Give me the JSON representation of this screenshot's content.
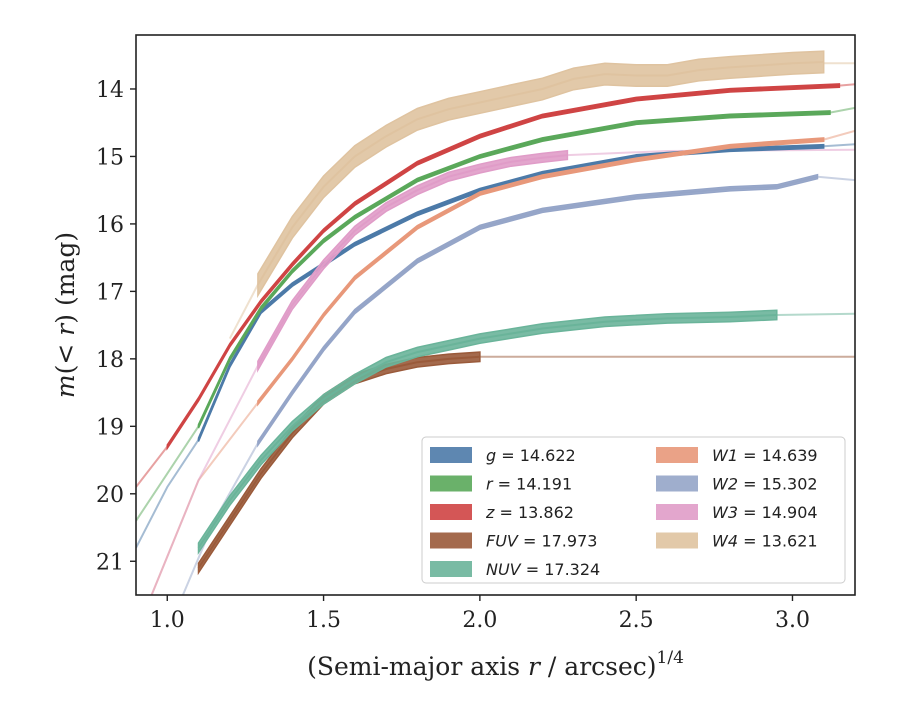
{
  "chart_data": {
    "type": "line",
    "xlabel": "(Semi-major axis r / arcsec)^1/4",
    "ylabel": "m(< r) (mag)",
    "xlim": [
      0.9,
      3.2
    ],
    "ylim": [
      21.5,
      13.2
    ],
    "y_inverted": true,
    "x_ticks": [
      1.0,
      1.5,
      2.0,
      2.5,
      3.0
    ],
    "x_tick_labels": [
      "1.0",
      "1.5",
      "2.0",
      "2.5",
      "3.0"
    ],
    "y_ticks": [
      14,
      15,
      16,
      17,
      18,
      19,
      20,
      21
    ],
    "y_tick_labels": [
      "14",
      "15",
      "16",
      "17",
      "18",
      "19",
      "20",
      "21"
    ],
    "grid": false,
    "legend_placement": "lower-right",
    "legend_columns": 2,
    "series": [
      {
        "name": "g = 14.622",
        "color": "#4c7aa8",
        "band_width": 0.05,
        "x": [
          1.1,
          1.2,
          1.3,
          1.4,
          1.5,
          1.6,
          1.8,
          2.0,
          2.2,
          2.5,
          2.8,
          3.1
        ],
        "y": [
          19.2,
          18.1,
          17.3,
          16.9,
          16.6,
          16.3,
          15.85,
          15.5,
          15.25,
          15.0,
          14.9,
          14.85
        ],
        "faint_x": [
          0.9,
          1.0,
          1.1
        ],
        "faint_y": [
          20.8,
          19.9,
          19.2
        ],
        "faint_ext_x": [
          3.1,
          3.2
        ],
        "faint_ext_y": [
          14.85,
          14.82
        ]
      },
      {
        "name": "r = 14.191",
        "color": "#5aa85a",
        "band_width": 0.05,
        "x": [
          1.1,
          1.2,
          1.3,
          1.4,
          1.5,
          1.6,
          1.8,
          2.0,
          2.2,
          2.5,
          2.8,
          3.12
        ],
        "y": [
          19.0,
          18.0,
          17.25,
          16.7,
          16.25,
          15.9,
          15.35,
          15.0,
          14.75,
          14.5,
          14.4,
          14.35
        ],
        "faint_x": [
          0.9,
          1.0,
          1.1
        ],
        "faint_y": [
          20.4,
          19.7,
          19.0
        ],
        "faint_ext_x": [
          3.12,
          3.2
        ],
        "faint_ext_y": [
          14.35,
          14.28
        ]
      },
      {
        "name": "z = 13.862",
        "color": "#cf4444",
        "band_width": 0.05,
        "x": [
          1.0,
          1.1,
          1.2,
          1.3,
          1.4,
          1.5,
          1.6,
          1.8,
          2.0,
          2.2,
          2.5,
          2.8,
          3.15
        ],
        "y": [
          19.3,
          18.6,
          17.8,
          17.15,
          16.6,
          16.1,
          15.7,
          15.1,
          14.7,
          14.4,
          14.15,
          14.02,
          13.95
        ],
        "faint_x": [
          0.9,
          1.0
        ],
        "faint_y": [
          19.9,
          19.3
        ],
        "faint_ext_x": [
          3.15,
          3.2
        ],
        "faint_ext_y": [
          13.95,
          13.93
        ]
      },
      {
        "name": "FUV = 17.973",
        "color": "#9a5a3a",
        "band_width": 0.14,
        "x": [
          1.1,
          1.2,
          1.3,
          1.4,
          1.5,
          1.6,
          1.7,
          1.8,
          1.9,
          2.0
        ],
        "y": [
          21.1,
          20.4,
          19.7,
          19.1,
          18.6,
          18.3,
          18.15,
          18.05,
          18.0,
          17.97
        ],
        "faint_x": [
          2.0,
          2.2,
          2.5,
          2.8,
          3.2
        ],
        "faint_y": [
          17.97,
          17.97,
          17.97,
          17.97,
          17.97
        ],
        "faint_ext_x": [],
        "faint_ext_y": []
      },
      {
        "name": "NUV = 17.324",
        "color": "#6ab49a",
        "band_width": 0.14,
        "x": [
          1.1,
          1.2,
          1.3,
          1.4,
          1.5,
          1.6,
          1.7,
          1.8,
          1.9,
          2.0,
          2.2,
          2.4,
          2.6,
          2.8,
          2.95
        ],
        "y": [
          20.8,
          20.1,
          19.5,
          19.0,
          18.6,
          18.3,
          18.05,
          17.9,
          17.8,
          17.7,
          17.55,
          17.45,
          17.4,
          17.38,
          17.35
        ],
        "faint_x": [
          2.95,
          3.2
        ],
        "faint_y": [
          17.35,
          17.33
        ],
        "faint_ext_x": [],
        "faint_ext_y": []
      },
      {
        "name": "W1 = 14.639",
        "color": "#e8987a",
        "band_width": 0.05,
        "x": [
          1.29,
          1.4,
          1.5,
          1.6,
          1.8,
          2.0,
          2.2,
          2.5,
          2.8,
          3.1
        ],
        "y": [
          18.65,
          18.0,
          17.35,
          16.8,
          16.05,
          15.55,
          15.3,
          15.05,
          14.85,
          14.75
        ],
        "faint_x": [
          0.95,
          1.1,
          1.29
        ],
        "faint_y": [
          21.5,
          19.8,
          18.65
        ],
        "faint_ext_x": [
          3.1,
          3.2
        ],
        "faint_ext_y": [
          14.75,
          14.62
        ]
      },
      {
        "name": "W2 = 15.302",
        "color": "#95a5c8",
        "band_width": 0.06,
        "x": [
          1.29,
          1.4,
          1.5,
          1.6,
          1.8,
          2.0,
          2.2,
          2.5,
          2.8,
          2.95,
          3.08
        ],
        "y": [
          19.25,
          18.5,
          17.85,
          17.3,
          16.55,
          16.05,
          15.8,
          15.6,
          15.48,
          15.45,
          15.3
        ],
        "faint_x": [
          1.05,
          1.15,
          1.29
        ],
        "faint_y": [
          21.5,
          20.4,
          19.25
        ],
        "faint_ext_x": [
          3.08,
          3.2
        ],
        "faint_ext_y": [
          15.3,
          15.35
        ]
      },
      {
        "name": "W3 = 14.904",
        "color": "#e09cc8",
        "band_width": 0.13,
        "x": [
          1.29,
          1.4,
          1.5,
          1.6,
          1.7,
          1.8,
          1.9,
          2.0,
          2.1,
          2.2,
          2.28
        ],
        "y": [
          18.1,
          17.2,
          16.6,
          16.1,
          15.75,
          15.5,
          15.3,
          15.18,
          15.08,
          15.02,
          14.98
        ],
        "faint_x": [
          0.95,
          1.1,
          1.29
        ],
        "faint_y": [
          21.5,
          19.8,
          18.1
        ],
        "faint_ext_x": [
          2.28,
          2.6,
          3.2
        ],
        "faint_ext_y": [
          14.98,
          14.92,
          14.9
        ]
      },
      {
        "name": "W4 = 13.621",
        "color": "#dfc3a0",
        "band_width": 0.32,
        "x": [
          1.29,
          1.4,
          1.5,
          1.6,
          1.7,
          1.8,
          1.9,
          2.0,
          2.1,
          2.2,
          2.3,
          2.4,
          2.5,
          2.6,
          2.7,
          2.8,
          2.9,
          3.0,
          3.1
        ],
        "y": [
          16.9,
          16.05,
          15.45,
          15.0,
          14.7,
          14.45,
          14.3,
          14.2,
          14.1,
          14.0,
          13.85,
          13.78,
          13.8,
          13.8,
          13.72,
          13.68,
          13.65,
          13.62,
          13.6
        ],
        "faint_x": [
          1.2,
          1.29
        ],
        "faint_y": [
          17.7,
          16.9
        ],
        "faint_ext_x": [
          3.1,
          3.2
        ],
        "faint_ext_y": [
          13.62,
          13.62
        ]
      }
    ],
    "legend_entries": [
      {
        "label_main": "g",
        "label_rest": " = 14.622",
        "color": "#4c7aa8"
      },
      {
        "label_main": "r",
        "label_rest": " = 14.191",
        "color": "#5aa85a"
      },
      {
        "label_main": "z",
        "label_rest": " = 13.862",
        "color": "#cf4444"
      },
      {
        "label_main": "FUV",
        "label_rest": " = 17.973",
        "color": "#9a5a3a"
      },
      {
        "label_main": "NUV",
        "label_rest": " = 17.324",
        "color": "#6ab49a"
      },
      {
        "label_main": "W1",
        "label_rest": " = 14.639",
        "color": "#e8987a"
      },
      {
        "label_main": "W2",
        "label_rest": " = 15.302",
        "color": "#95a5c8"
      },
      {
        "label_main": "W3",
        "label_rest": " = 14.904",
        "color": "#e09cc8"
      },
      {
        "label_main": "W4",
        "label_rest": " = 13.621",
        "color": "#dfc3a0"
      }
    ]
  }
}
